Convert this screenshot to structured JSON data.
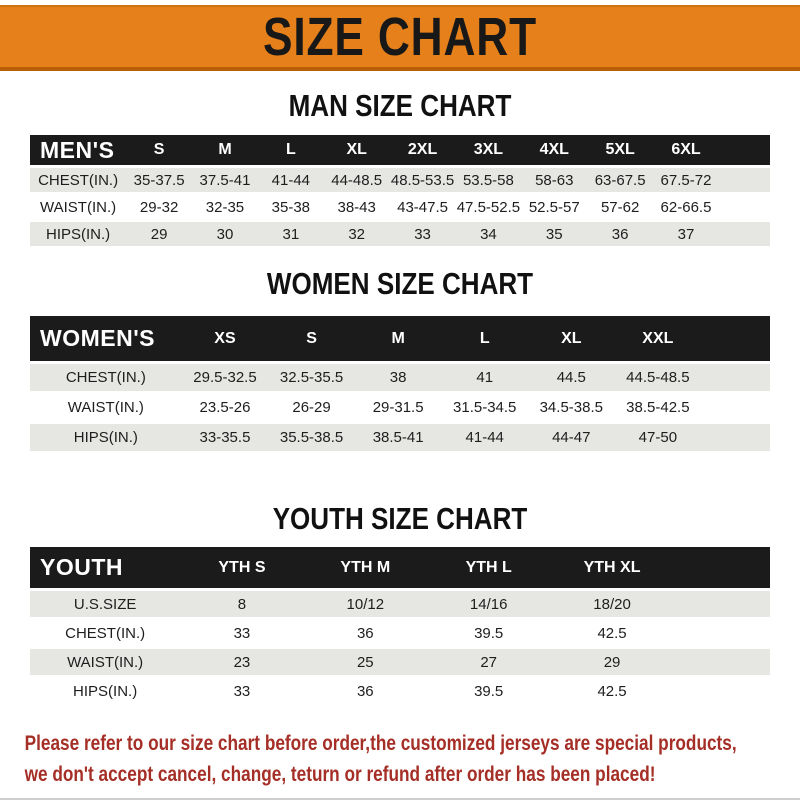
{
  "colors": {
    "banner_bg": "#E6801A",
    "banner_edge": "#B85F08",
    "bar_bg": "#1B1B1B",
    "row_alt_bg": "#E6E6E3",
    "note_color": "#A52F26",
    "bottom_strip": "#CFCFCD"
  },
  "banner": {
    "title": "SIZE CHART"
  },
  "sections": [
    {
      "title": "MAN SIZE CHART",
      "header_label": "MEN'S",
      "columns": [
        "S",
        "M",
        "L",
        "XL",
        "2XL",
        "3XL",
        "4XL",
        "5XL",
        "6XL"
      ],
      "rows": [
        {
          "label": "CHEST(IN.)",
          "values": [
            "35-37.5",
            "37.5-41",
            "41-44",
            "44-48.5",
            "48.5-53.5",
            "53.5-58",
            "58-63",
            "63-67.5",
            "67.5-72"
          ]
        },
        {
          "label": "WAIST(IN.)",
          "values": [
            "29-32",
            "32-35",
            "35-38",
            "38-43",
            "43-47.5",
            "47.5-52.5",
            "52.5-57",
            "57-62",
            "62-66.5"
          ]
        },
        {
          "label": "HIPS(IN.)",
          "values": [
            "29",
            "30",
            "31",
            "32",
            "33",
            "34",
            "35",
            "36",
            "37"
          ]
        }
      ]
    },
    {
      "title": "WOMEN SIZE CHART",
      "header_label": "WOMEN'S",
      "columns": [
        "XS",
        "S",
        "M",
        "L",
        "XL",
        "XXL"
      ],
      "rows": [
        {
          "label": "CHEST(IN.)",
          "values": [
            "29.5-32.5",
            "32.5-35.5",
            "38",
            "41",
            "44.5",
            "44.5-48.5"
          ]
        },
        {
          "label": "WAIST(IN.)",
          "values": [
            "23.5-26",
            "26-29",
            "29-31.5",
            "31.5-34.5",
            "34.5-38.5",
            "38.5-42.5"
          ]
        },
        {
          "label": "HIPS(IN.)",
          "values": [
            "33-35.5",
            "35.5-38.5",
            "38.5-41",
            "41-44",
            "44-47",
            "47-50"
          ]
        }
      ]
    },
    {
      "title": "YOUTH SIZE CHART",
      "header_label": "YOUTH",
      "columns": [
        "YTH S",
        "YTH M",
        "YTH L",
        "YTH XL"
      ],
      "rows": [
        {
          "label": "U.S.SIZE",
          "values": [
            "8",
            "10/12",
            "14/16",
            "18/20"
          ]
        },
        {
          "label": "CHEST(IN.)",
          "values": [
            "33",
            "36",
            "39.5",
            "42.5"
          ]
        },
        {
          "label": "WAIST(IN.)",
          "values": [
            "23",
            "25",
            "27",
            "29"
          ]
        },
        {
          "label": "HIPS(IN.)",
          "values": [
            "33",
            "36",
            "39.5",
            "42.5"
          ]
        }
      ]
    }
  ],
  "footer_note": {
    "line1": "Please refer to our size chart before order,the customized jerseys are special products,",
    "line2": "we don't accept cancel, change, teturn or refund after order has been placed!"
  }
}
